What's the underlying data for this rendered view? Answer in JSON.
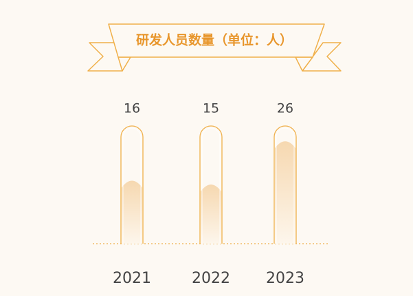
{
  "chart_data": {
    "type": "bar",
    "title": "研发人员数量（单位：人）",
    "categories": [
      "2021",
      "2022",
      "2023"
    ],
    "values": [
      16,
      15,
      26
    ],
    "color": "#f0b04a"
  }
}
